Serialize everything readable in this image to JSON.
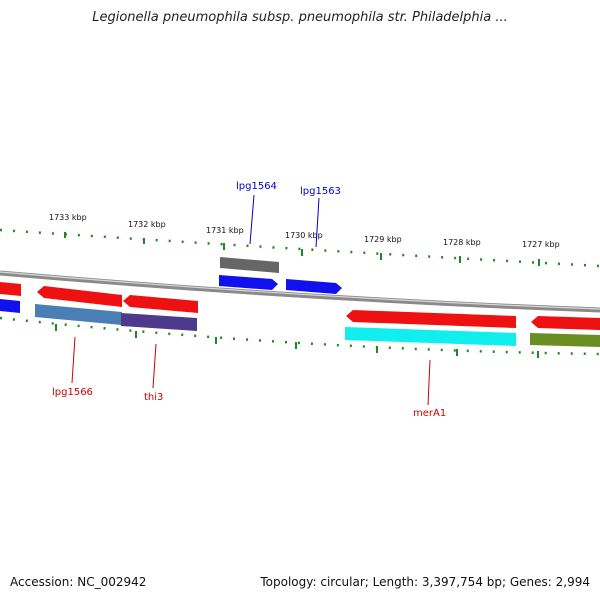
{
  "title": "Legionella pneumophila subsp. pneumophila str. Philadelphia ...",
  "footer": {
    "accession": "Accession: NC_002942",
    "summary": "Topology: circular; Length: 3,397,754 bp; Genes: 2,994"
  },
  "ticks": [
    "1733 kbp",
    "1732 kbp",
    "1731 kbp",
    "1730 kbp",
    "1729 kbp",
    "1728 kbp",
    "1727 kbp"
  ],
  "gene_labels": {
    "lpg1564": "lpg1564",
    "lpg1563": "lpg1563",
    "lpg1566": "lpg1566",
    "thi3": "thi3",
    "merA1": "merA1"
  },
  "colors": {
    "backbone": "#8a8a8a",
    "tick": "#228822",
    "forward_cds": "#ee1111",
    "reverse_cds": "#1111ee",
    "gray_feature": "#666666",
    "steelblue_feature": "#4a7fb5",
    "purple_feature": "#4d3a8a",
    "cyan_feature": "#11eeee",
    "olive_feature": "#6b8e23",
    "label_blue": "#0000cc",
    "label_red": "#cc0000"
  }
}
